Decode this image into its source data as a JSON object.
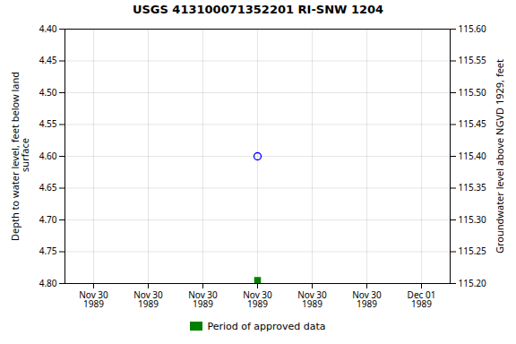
{
  "chart_data": {
    "type": "scatter",
    "title": "USGS 413100071352201 RI-SNW 1204",
    "ylabel": "Depth to water level, feet below land\n surface",
    "y2label": "Groundwater level above NGVD 1929, feet",
    "categories": [
      "Nov 30\n1989",
      "Nov 30\n1989",
      "Nov 30\n1989",
      "Nov 30\n1989",
      "Nov 30\n1989",
      "Nov 30\n1989",
      "Dec 01\n1989"
    ],
    "series": [
      {
        "color": "#0000ff",
        "marker": "circle-open",
        "values": [
          null,
          null,
          null,
          4.6,
          null,
          null,
          null
        ]
      },
      {
        "name": "Period of approved data",
        "color": "#008000",
        "marker": "square",
        "values": [
          null,
          null,
          null,
          4.795,
          null,
          null,
          null
        ]
      }
    ],
    "ylim": [
      4.8,
      4.4
    ],
    "yticks": [
      {
        "value": 4.4,
        "label": "4.40"
      },
      4.45,
      {
        "value": 4.5,
        "label": "4.50"
      },
      4.55,
      {
        "value": 4.6,
        "label": "4.60"
      },
      4.65,
      {
        "value": 4.7,
        "label": "4.70"
      },
      4.75,
      {
        "value": 4.8,
        "label": "4.80"
      }
    ],
    "y2lim": [
      115.2,
      115.6
    ],
    "y2ticks": [
      {
        "value": 115.6,
        "label": "115.60"
      },
      115.55,
      {
        "value": 115.5,
        "label": "115.50"
      },
      115.45,
      {
        "value": 115.4,
        "label": "115.40"
      },
      115.35,
      {
        "value": 115.3,
        "label": "115.30"
      },
      115.25,
      {
        "value": 115.2,
        "label": "115.20"
      }
    ],
    "grid": true,
    "legend": "bottom"
  }
}
